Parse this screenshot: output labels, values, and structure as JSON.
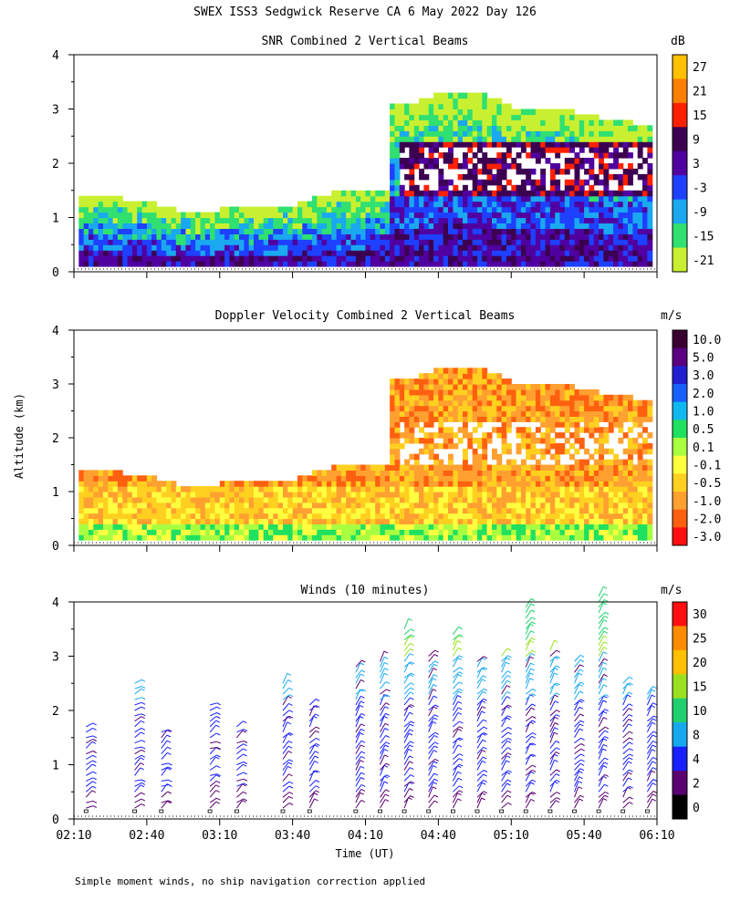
{
  "header": {
    "title": "SWEX ISS3 Sedgwick Reserve CA   6 May 2022 Day 126",
    "y_axis_label": "Altitude (km)",
    "x_axis_label": "Time (UT)",
    "footnote": "Simple moment winds, no ship navigation correction applied"
  },
  "chart_data": [
    {
      "type": "heatmap",
      "title": "SNR Combined 2 Vertical Beams",
      "colorbar_unit": "dB",
      "colorbar_labels": [
        "27",
        "21",
        "15",
        "9",
        "3",
        "-3",
        "-9",
        "-15",
        "-21"
      ],
      "colorbar_colors": [
        "#ffc000",
        "#ff8000",
        "#ff2000",
        "#3c0050",
        "#5000a0",
        "#1e40ff",
        "#1aa8f0",
        "#30e070",
        "#c8f030"
      ],
      "x_ticks": [
        "02:10",
        "02:40",
        "03:10",
        "03:40",
        "04:10",
        "04:40",
        "05:10",
        "05:40",
        "06:10"
      ],
      "y_ticks": [
        "0",
        "1",
        "2",
        "3",
        "4"
      ],
      "xlim_minutes_utc": [
        130,
        370
      ],
      "ylim_km": [
        0,
        4
      ],
      "echo_top_km": [
        [
          132,
          1.35
        ],
        [
          140,
          1.35
        ],
        [
          150,
          1.3
        ],
        [
          160,
          1.25
        ],
        [
          170,
          1.1
        ],
        [
          180,
          1.05
        ],
        [
          190,
          1.1
        ],
        [
          200,
          1.1
        ],
        [
          210,
          1.15
        ],
        [
          220,
          1.2
        ],
        [
          230,
          1.35
        ],
        [
          240,
          1.45
        ],
        [
          250,
          1.45
        ],
        [
          258,
          1.45
        ],
        [
          259,
          3.05
        ],
        [
          270,
          3.1
        ],
        [
          280,
          3.25
        ],
        [
          290,
          3.3
        ],
        [
          300,
          3.2
        ],
        [
          310,
          3.0
        ],
        [
          320,
          2.95
        ],
        [
          330,
          2.95
        ],
        [
          340,
          2.85
        ],
        [
          350,
          2.75
        ],
        [
          360,
          2.7
        ],
        [
          366,
          2.65
        ]
      ]
    },
    {
      "type": "heatmap",
      "title": "Doppler Velocity Combined 2 Vertical Beams",
      "colorbar_unit": "m/s",
      "colorbar_labels": [
        "10.0",
        "5.0",
        "3.0",
        "2.0",
        "1.0",
        "0.5",
        "0.1",
        "-0.1",
        "-0.5",
        "-1.0",
        "-2.0",
        "-3.0"
      ],
      "colorbar_colors": [
        "#3a0030",
        "#5a0080",
        "#2020d0",
        "#1860ff",
        "#10b8f0",
        "#20e060",
        "#a8ff40",
        "#ffff40",
        "#ffd020",
        "#ffa030",
        "#ff6010",
        "#ff1010"
      ],
      "x_ticks": [
        "02:10",
        "02:40",
        "03:10",
        "03:40",
        "04:10",
        "04:40",
        "05:10",
        "05:40",
        "06:10"
      ],
      "y_ticks": [
        "0",
        "1",
        "2",
        "3",
        "4"
      ],
      "xlim_minutes_utc": [
        130,
        370
      ],
      "ylim_km": [
        0,
        4
      ]
    },
    {
      "type": "scatter",
      "title": "Winds (10 minutes)",
      "colorbar_unit": "m/s",
      "colorbar_labels": [
        "30",
        "25",
        "20",
        "15",
        "10",
        "8",
        "4",
        "2",
        "0"
      ],
      "colorbar_colors": [
        "#ff1010",
        "#ff8c00",
        "#ffc000",
        "#9ae020",
        "#20d070",
        "#18a8f0",
        "#1820ff",
        "#5a0070",
        "#000000"
      ],
      "x_ticks": [
        "02:10",
        "02:40",
        "03:10",
        "03:40",
        "04:10",
        "04:40",
        "05:10",
        "05:40",
        "06:10"
      ],
      "y_ticks": [
        "0",
        "1",
        "2",
        "3",
        "4"
      ],
      "xlim_minutes_utc": [
        130,
        370
      ],
      "ylim_km": [
        0,
        4
      ],
      "profiles": [
        {
          "t": 135,
          "top_km": 1.75
        },
        {
          "t": 155,
          "top_km": 2.6
        },
        {
          "t": 166,
          "top_km": 1.7
        },
        {
          "t": 186,
          "top_km": 2.2
        },
        {
          "t": 197,
          "top_km": 1.8
        },
        {
          "t": 216,
          "top_km": 2.6
        },
        {
          "t": 227,
          "top_km": 2.2
        },
        {
          "t": 246,
          "top_km": 2.9
        },
        {
          "t": 256,
          "top_km": 3.0
        },
        {
          "t": 266,
          "top_km": 3.6
        },
        {
          "t": 276,
          "top_km": 3.1
        },
        {
          "t": 286,
          "top_km": 3.5
        },
        {
          "t": 296,
          "top_km": 3.0
        },
        {
          "t": 306,
          "top_km": 3.1
        },
        {
          "t": 316,
          "top_km": 4.0
        },
        {
          "t": 326,
          "top_km": 3.2
        },
        {
          "t": 336,
          "top_km": 3.0
        },
        {
          "t": 346,
          "top_km": 4.2
        },
        {
          "t": 356,
          "top_km": 2.6
        },
        {
          "t": 366,
          "top_km": 2.4
        }
      ]
    }
  ]
}
